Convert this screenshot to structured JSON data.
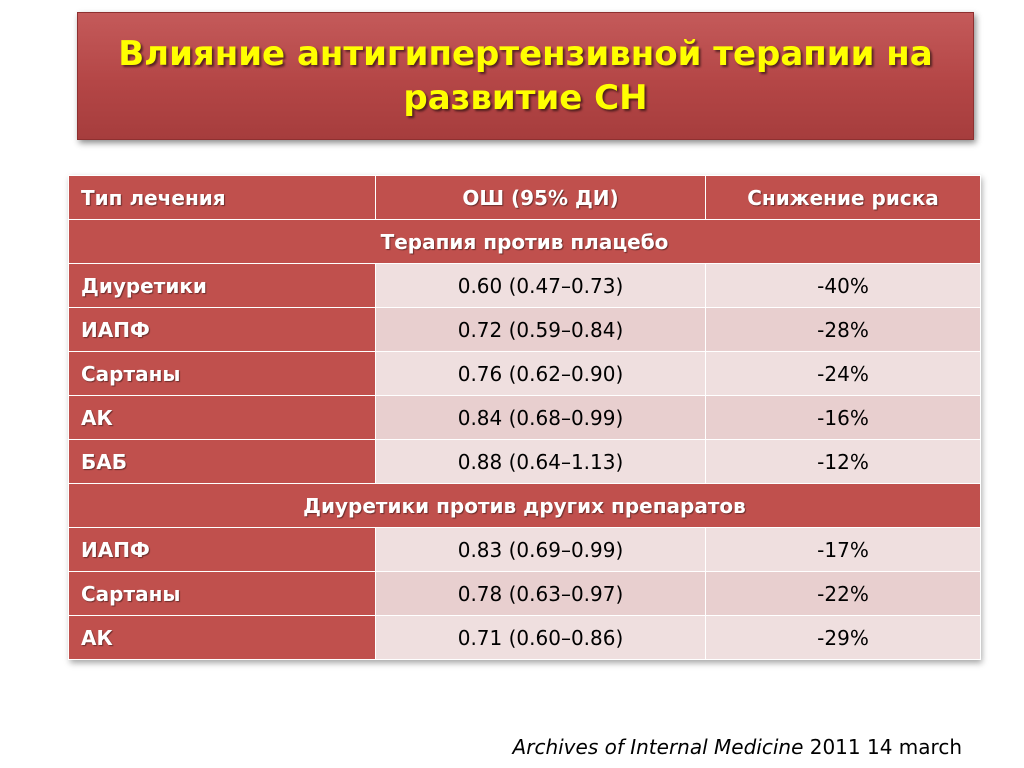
{
  "slide": {
    "title_line1": "Влияние антигипертензивной терапии на",
    "title_line2": "развитие СН"
  },
  "table": {
    "headers": [
      "Тип лечения",
      "ОШ (95% ДИ)",
      "Снижение риска"
    ],
    "sections": [
      {
        "title": "Терапия против плацебо",
        "rows": [
          {
            "type": "Диуретики",
            "or": "0.60 (0.47–0.73)",
            "risk": "-40%"
          },
          {
            "type": "ИАПФ",
            "or": "0.72 (0.59–0.84)",
            "risk": "-28%"
          },
          {
            "type": "Сартаны",
            "or": "0.76 (0.62–0.90)",
            "risk": "-24%"
          },
          {
            "type": "АК",
            "or": "0.84 (0.68–0.99)",
            "risk": "-16%"
          },
          {
            "type": "БАБ",
            "or": "0.88 (0.64–1.13)",
            "risk": "-12%"
          }
        ]
      },
      {
        "title": "Диуретики против других препаратов",
        "rows": [
          {
            "type": "ИАПФ",
            "or": "0.83 (0.69–0.99)",
            "risk": "-17%"
          },
          {
            "type": "Сартаны",
            "or": "0.78 (0.63–0.97)",
            "risk": "-22%"
          },
          {
            "type": "АК",
            "or": "0.71 (0.60–0.86)",
            "risk": "-29%"
          }
        ]
      }
    ]
  },
  "citation": {
    "journal": "Archives of Internal Medicine",
    "date": "2011 14 march"
  },
  "colors": {
    "title_bg": "#b44646",
    "title_text": "#ffff00",
    "header_bg": "#c0504d",
    "row_light": "#efdfdf",
    "row_dark": "#e8cfcf"
  }
}
